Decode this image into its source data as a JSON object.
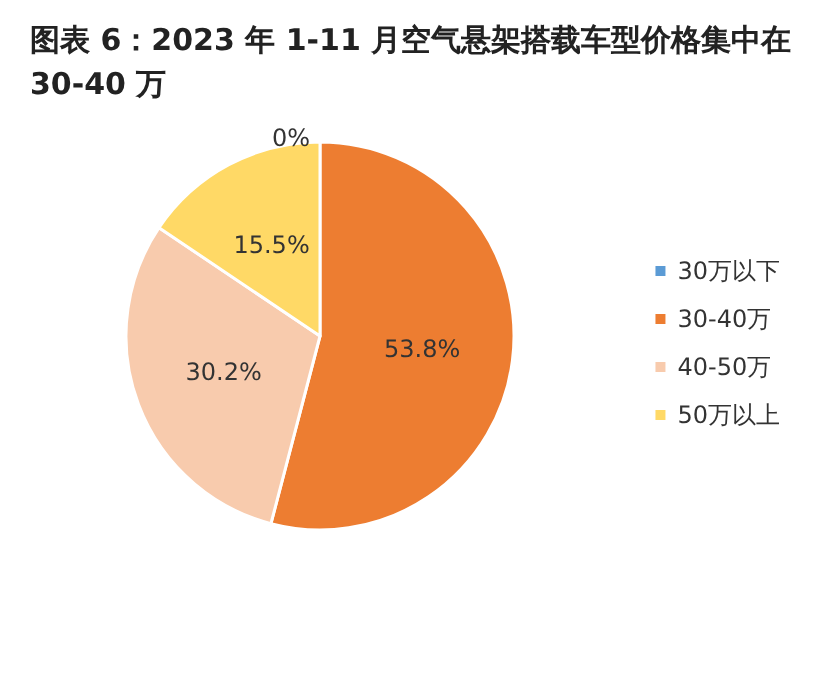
{
  "chart_data": {
    "type": "pie",
    "title": "图表 6：2023 年 1-11 月空气悬架搭载车型价格集中在 30-40 万",
    "categories": [
      "30万以下",
      "30-40万",
      "40-50万",
      "50万以上"
    ],
    "values": [
      0,
      53.8,
      30.2,
      15.5
    ],
    "colors": [
      "#5b9bd5",
      "#ed7d31",
      "#f8cbad",
      "#ffd966"
    ],
    "value_labels": [
      "0%",
      "53.8%",
      "30.2%",
      "15.5%"
    ],
    "legend": "right"
  }
}
